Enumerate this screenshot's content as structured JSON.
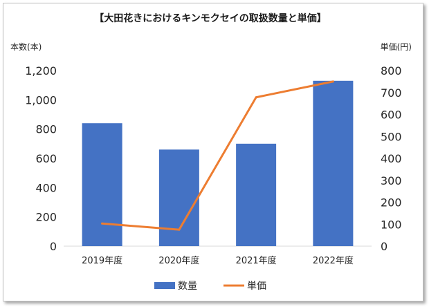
{
  "chart_data": {
    "type": "bar",
    "title": "【大田花きにおけるキンモクセイの取扱数量と単価】",
    "y_left_label": "本数(本)",
    "y_right_label": "単価(円)",
    "categories": [
      "2019年度",
      "2020年度",
      "2021年度",
      "2022年度"
    ],
    "ylim_left": [
      0,
      1200
    ],
    "yticks_left": [
      "0",
      "200",
      "400",
      "600",
      "800",
      "1,000",
      "1,200"
    ],
    "ylim_right": [
      0,
      800
    ],
    "yticks_right": [
      "0",
      "100",
      "200",
      "300",
      "400",
      "500",
      "600",
      "700",
      "800"
    ],
    "series": [
      {
        "name": "数量",
        "type": "bar",
        "axis": "left",
        "color": "#4472c4",
        "values": [
          840,
          660,
          700,
          1130
        ]
      },
      {
        "name": "単価",
        "type": "line",
        "axis": "right",
        "color": "#ed7d31",
        "values": [
          103,
          75,
          678,
          750
        ]
      }
    ],
    "grid": false,
    "legend_position": "bottom"
  }
}
